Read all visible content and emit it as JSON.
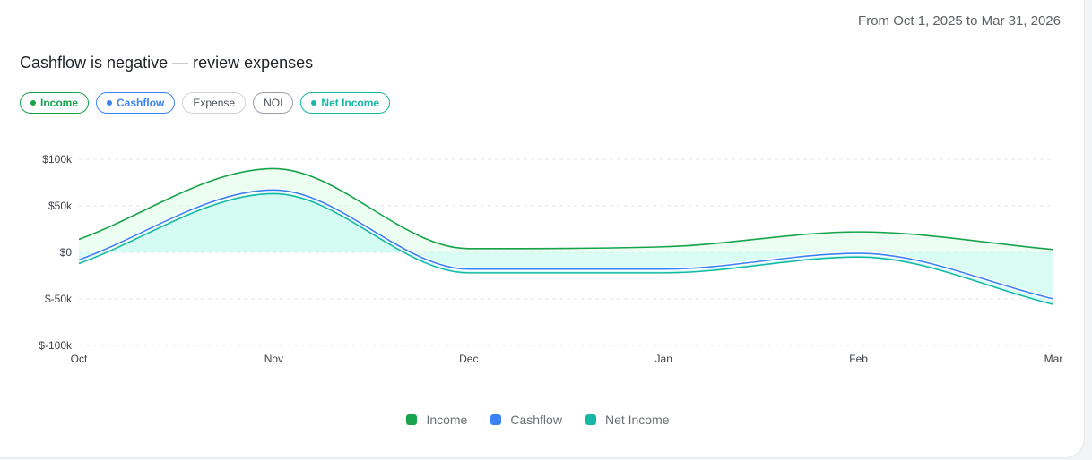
{
  "header": {
    "date_range": "From Oct 1, 2025 to Mar 31, 2026"
  },
  "title": "Cashflow is negative — review expenses",
  "filters": [
    {
      "label": "Income",
      "active": true,
      "color": "#16a34a",
      "border": "#16a34a"
    },
    {
      "label": "Cashflow",
      "active": true,
      "color": "#3b82f6",
      "border": "#3b82f6"
    },
    {
      "label": "Expense",
      "active": false,
      "color": "",
      "border": "#cfd2d7"
    },
    {
      "label": "NOI",
      "active": false,
      "color": "",
      "border": "#9aa0a8"
    },
    {
      "label": "Net Income",
      "active": true,
      "color": "#14b8a6",
      "border": "#14b8a6"
    }
  ],
  "chart_data": {
    "type": "area",
    "categories": [
      "Oct",
      "Nov",
      "Dec",
      "Jan",
      "Feb",
      "Mar"
    ],
    "y_ticks": [
      "$100k",
      "$50k",
      "$0",
      "$-50k",
      "$-100k"
    ],
    "y_tick_values": [
      100000,
      50000,
      0,
      -50000,
      -100000
    ],
    "ylim": [
      -100000,
      100000
    ],
    "grid": true,
    "legend_position": "bottom-center",
    "series": [
      {
        "name": "Income",
        "color": "#16a34a",
        "fill": "#dcfce7",
        "values": [
          14000,
          90000,
          4000,
          6000,
          22000,
          3000
        ]
      },
      {
        "name": "Cashflow",
        "color": "#3b82f6",
        "fill": "none",
        "values": [
          -8000,
          67000,
          -18000,
          -18000,
          -1000,
          -50000
        ]
      },
      {
        "name": "Net Income",
        "color": "#14b8a6",
        "fill": "#ccfbf1",
        "values": [
          -12000,
          63000,
          -22000,
          -22000,
          -5000,
          -56000
        ]
      }
    ]
  }
}
